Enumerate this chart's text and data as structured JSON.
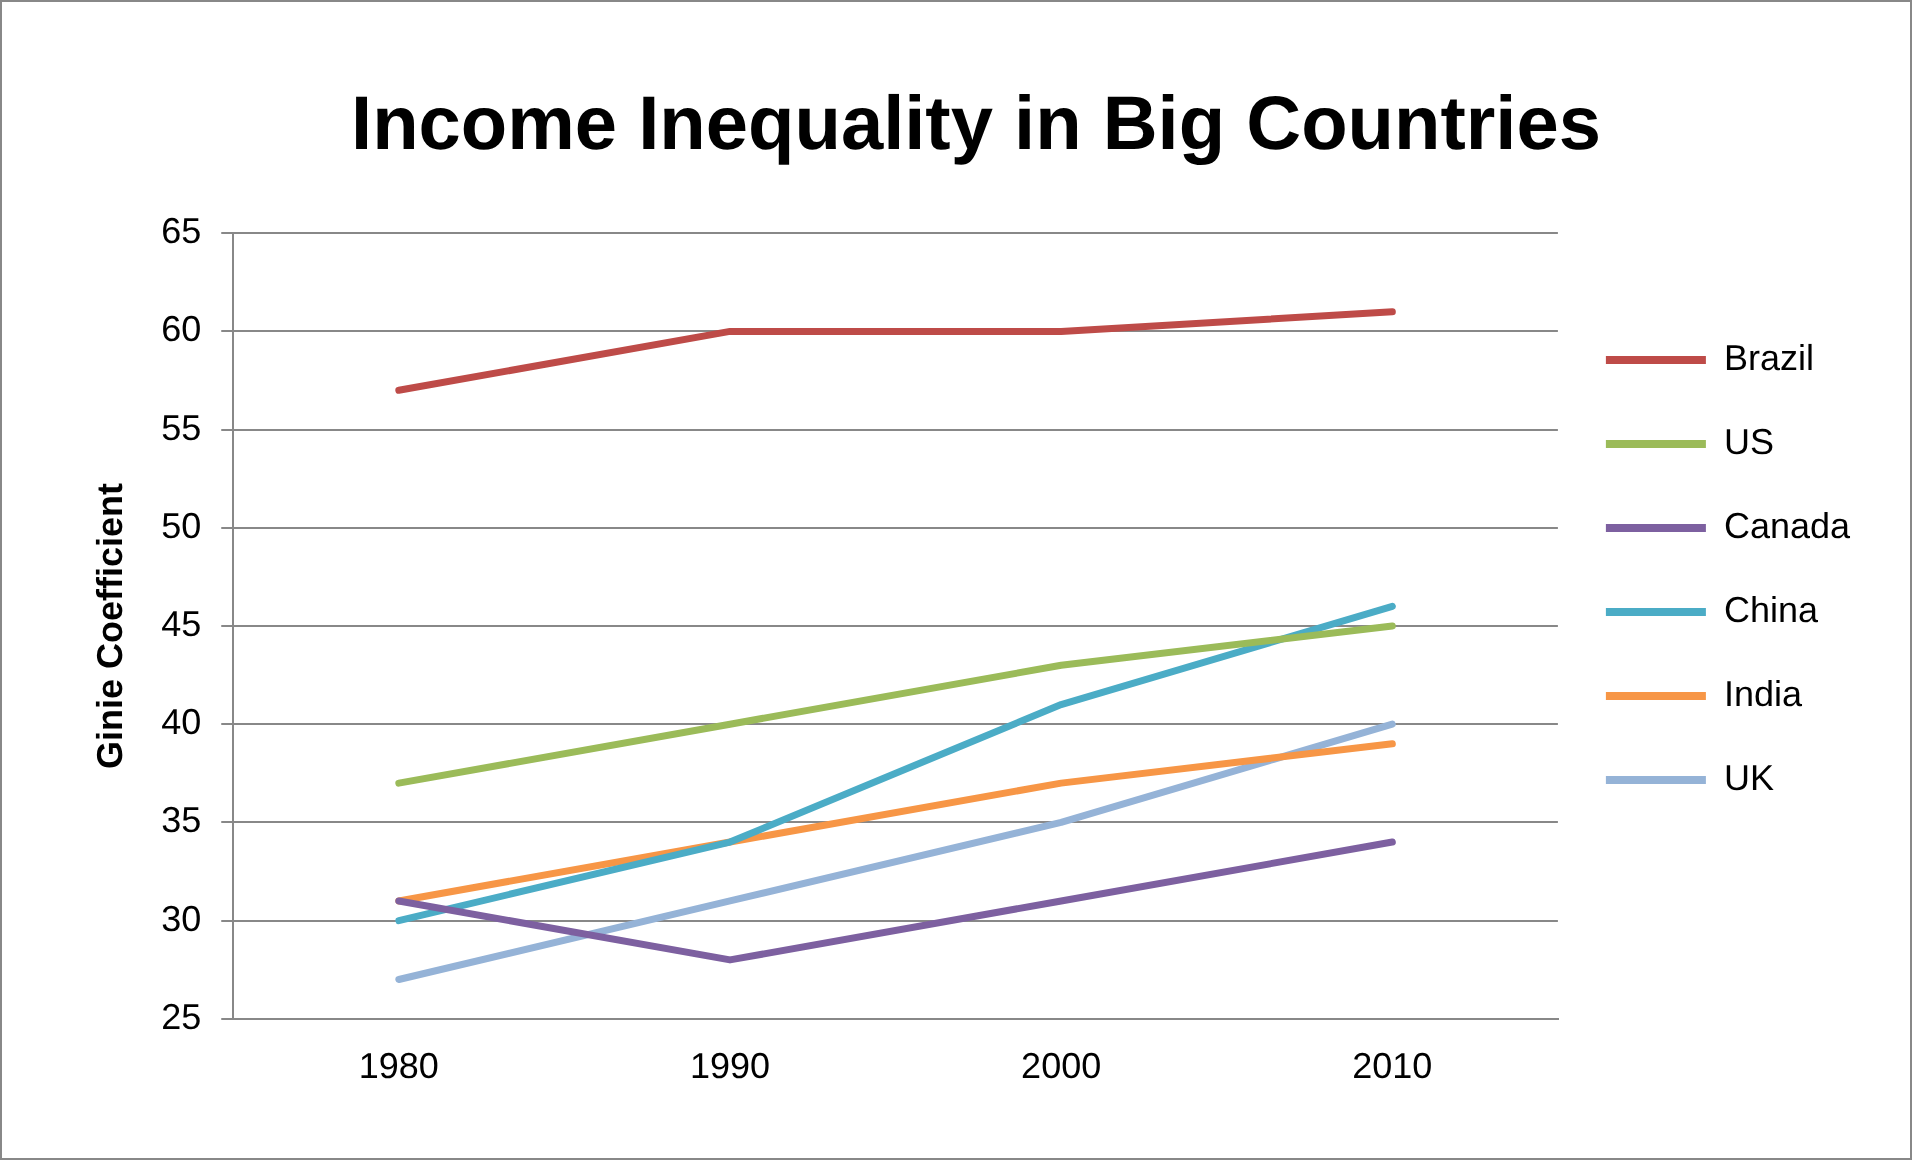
{
  "chart_data": {
    "type": "line",
    "title": "Income Inequality in Big Countries",
    "ylabel": "Ginie Coefficient",
    "categories": [
      "1980",
      "1990",
      "2000",
      "2010"
    ],
    "series": [
      {
        "name": "Brazil",
        "color": "#be4b48",
        "values": [
          57,
          60,
          60,
          61
        ]
      },
      {
        "name": "US",
        "color": "#9bbb59",
        "values": [
          37,
          40,
          43,
          45
        ]
      },
      {
        "name": "Canada",
        "color": "#7d60a0",
        "values": [
          31,
          28,
          31,
          34
        ]
      },
      {
        "name": "China",
        "color": "#4bacc6",
        "values": [
          30,
          34,
          41,
          46
        ]
      },
      {
        "name": "India",
        "color": "#f79646",
        "values": [
          31,
          34,
          37,
          39
        ]
      },
      {
        "name": "UK",
        "color": "#95b3d7",
        "values": [
          27,
          31,
          35,
          40
        ]
      }
    ],
    "ylim": [
      25,
      65
    ],
    "yticks": [
      25,
      30,
      35,
      40,
      45,
      50,
      55,
      60,
      65
    ],
    "grid": "y",
    "legend": "right",
    "marker": "none",
    "line_style": "solid"
  }
}
